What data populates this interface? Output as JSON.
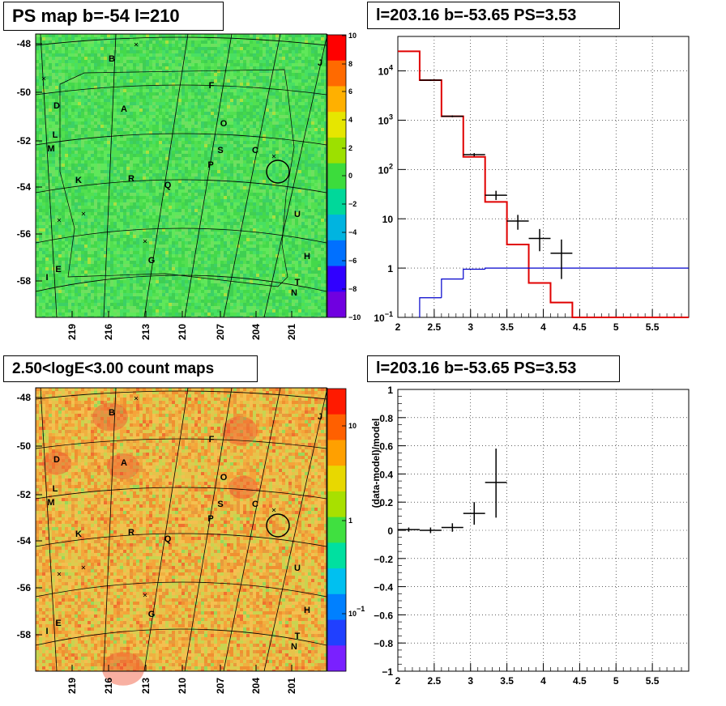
{
  "titles": {
    "ps_map": "PS map b=-54 l=210",
    "spectrum": "l=203.16 b=-53.65 PS=3.53",
    "count_map": "2.50<logE<3.00 count maps",
    "residual": "l=203.16 b=-53.65 PS=3.53"
  },
  "colors": {
    "model_line": "#e00000",
    "background_line": "#0000cc",
    "data_marks": "#000000",
    "ps_map_bg": "#4fde4f",
    "count_map_bg": "#f0b040"
  },
  "chart_data": [
    {
      "type": "heatmap",
      "name_text": "PS map b=-54 l=210",
      "y_ticks": [
        "-48",
        "-50",
        "-52",
        "-54",
        "-56",
        "-58"
      ],
      "x_ticks": [
        "219",
        "216",
        "213",
        "210",
        "207",
        "204",
        "201"
      ],
      "colorbar_ticks": [
        "10",
        "8",
        "6",
        "4",
        "2",
        "0",
        "−2",
        "−4",
        "−6",
        "−8",
        "−10"
      ],
      "zlim": [
        -10,
        10
      ],
      "source_labels": [
        "B",
        "J",
        "F",
        "D",
        "A",
        "L",
        "O",
        "M",
        "S",
        "C",
        "P",
        "K",
        "R",
        "Q",
        "U",
        "G",
        "H",
        "E",
        "I",
        "T",
        "N"
      ]
    },
    {
      "type": "line",
      "title": "l=203.16 b=-53.65 PS=3.53",
      "xlabel": "",
      "ylabel": "",
      "y_scale": "log",
      "xlim": [
        2,
        6
      ],
      "ylim": [
        0.1,
        50000
      ],
      "x_ticks": [
        "2",
        "2.5",
        "3",
        "3.5",
        "4",
        "4.5",
        "5",
        "5.5"
      ],
      "y_ticks": [
        "10^4",
        "10^3",
        "10^2",
        "10",
        "1",
        "10^-1"
      ],
      "grid": true,
      "series": [
        {
          "kind": "step",
          "x_edges": [
            2.0,
            2.3,
            2.6,
            2.9,
            3.2,
            3.5,
            3.8,
            4.1,
            4.4,
            6.0
          ],
          "values": [
            25000,
            6500,
            1200,
            180,
            22,
            3,
            0.5,
            0.2,
            0.1
          ]
        },
        {
          "kind": "step",
          "x_edges": [
            2.0,
            2.3,
            2.6,
            2.9,
            3.2,
            6.0
          ],
          "values": [
            0.08,
            0.25,
            0.6,
            0.95,
            1.0
          ]
        },
        {
          "kind": "errorbar",
          "x": [
            2.45,
            2.75,
            3.05,
            3.35,
            3.65,
            3.95,
            4.25
          ],
          "y": [
            6500,
            1200,
            200,
            30,
            9,
            4,
            2
          ],
          "xerr": 0.15,
          "ylow": [
            6300,
            1150,
            185,
            24,
            6,
            2.2,
            0.6
          ],
          "yhigh": [
            6700,
            1250,
            215,
            37,
            12,
            6.2,
            3.8
          ]
        }
      ]
    },
    {
      "type": "heatmap",
      "name_text": "2.50<logE<3.00 count maps",
      "y_ticks": [
        "-48",
        "-50",
        "-52",
        "-54",
        "-56",
        "-58"
      ],
      "x_ticks": [
        "219",
        "216",
        "213",
        "210",
        "207",
        "204",
        "201"
      ],
      "colorbar_ticks": [
        "10",
        "1",
        "10^-1"
      ],
      "z_scale": "log",
      "source_labels": [
        "B",
        "J",
        "F",
        "D",
        "A",
        "L",
        "O",
        "M",
        "S",
        "C",
        "P",
        "K",
        "R",
        "Q",
        "U",
        "G",
        "H",
        "E",
        "I",
        "T",
        "N"
      ]
    },
    {
      "type": "scatter",
      "title": "l=203.16 b=-53.65 PS=3.53",
      "xlabel": "",
      "ylabel": "(data-model)/model",
      "xlim": [
        2,
        6
      ],
      "ylim": [
        -1,
        1
      ],
      "x_ticks": [
        "2",
        "2.5",
        "3",
        "3.5",
        "4",
        "4.5",
        "5",
        "5.5"
      ],
      "y_ticks": [
        "1",
        "0.8",
        "0.6",
        "0.4",
        "0.2",
        "0",
        "−0.2",
        "−0.4",
        "−0.6",
        "−0.8",
        "−1"
      ],
      "grid": true,
      "series": [
        {
          "kind": "errorbar",
          "x": [
            2.15,
            2.45,
            2.75,
            3.05,
            3.35
          ],
          "y": [
            0.005,
            0.0,
            0.02,
            0.12,
            0.34
          ],
          "xerr": 0.15,
          "ylow": [
            -0.01,
            -0.02,
            -0.01,
            0.04,
            0.09
          ],
          "yhigh": [
            0.02,
            0.02,
            0.05,
            0.2,
            0.58
          ]
        }
      ]
    }
  ]
}
